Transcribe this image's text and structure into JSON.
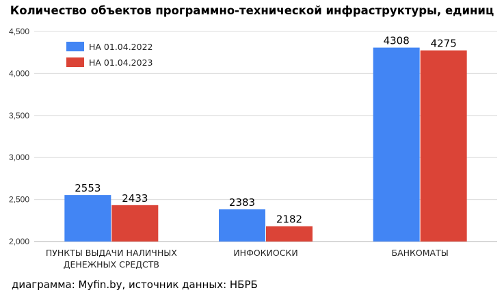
{
  "title": "Количество объектов программно-технической инфраструктуры, единиц",
  "source": "диаграмма: Myfin.by, источник данных: НБРБ",
  "chart_data": {
    "type": "bar",
    "categories": [
      [
        "ПУНКТЫ ВЫДАЧИ НАЛИЧНЫХ",
        "ДЕНЕЖНЫХ СРЕДСТВ"
      ],
      [
        "ИНФОКИОСКИ"
      ],
      [
        "БАНКОМАТЫ"
      ]
    ],
    "series": [
      {
        "name": "НА 01.04.2022",
        "values": [
          2553,
          2383,
          4308
        ],
        "color": "#4285f4"
      },
      {
        "name": "НА 01.04.2023",
        "values": [
          2433,
          2182,
          4275
        ],
        "color": "#db4437"
      }
    ],
    "ylim": [
      2000,
      4500
    ],
    "yticks": [
      2000,
      2500,
      3000,
      3500,
      4000,
      4500
    ],
    "ytick_labels": [
      "2,000",
      "2,500",
      "3,000",
      "3,500",
      "4,000",
      "4,500"
    ],
    "grid": true,
    "legend": "top-left"
  }
}
